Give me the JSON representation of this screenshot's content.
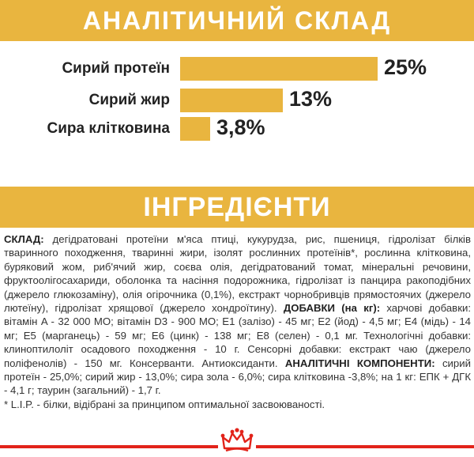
{
  "analytic": {
    "title": "АНАЛІТИЧНИЙ СКЛАД",
    "rows": [
      {
        "label": "Сирий протеїн",
        "value": "25%",
        "fraction": 1.0
      },
      {
        "label": "Сирий жир",
        "value": "13%",
        "fraction": 0.52
      },
      {
        "label": "Сира клітковина",
        "value": "3,8%",
        "fraction": 0.152
      }
    ]
  },
  "ingredients": {
    "title": "ІНГРЕДІЄНТИ",
    "sklad_label": "СКЛАД:",
    "sklad_text": " дегідратовані протеїни м'яса птиці, кукурудза, рис, пшениця, гідролізат білків тваринного походження, тваринні жири, ізолят рослинних протеїнів*, рослинна клітковина, буряковий жом, риб'ячий жир, соєва олія, дегідратований томат, мінеральні речовини, фруктоолігосахариди, оболонка та насіння подорожника, гідролізат із панцира ракоподібних (джерело глюкозаміну), олія огірочника (0,1%), екстракт чорнобривців прямостоячих (джерело лютеїну), гідролізат хрящової (джерело хондроїтину). ",
    "dobavky_label": "ДОБАВКИ (на кг):",
    "dobavky_text": " харчові добавки: вітамін A - 32 000 MO; вітамін D3 - 900 MO; E1 (залізо) - 45 мг; E2 (йод) - 4,5 мг; E4 (мідь) - 14 мг; E5 (марганець) - 59 мг; E6 (цинк) - 138 мг; E8 (селен) - 0,1 мг. Технологічні добавки: клиноптилоліт осадового походження - 10 г. Сенсорні добавки: екстракт чаю (джерело поліфенолів) - 150 мг. Консерванти. Антиоксиданти. ",
    "components_label": "АНАЛІТИЧНІ КОМПОНЕНТИ:",
    "components_text": " сирий протеїн - 25,0%; сирий жир - 13,0%; сира зола - 6,0%; сира клітковина -3,8%; на 1 кг: ЕПК + ДГК - 4,1 г; таурин (загальний) - 1,7 г.",
    "footnote": "* L.I.P. - білки, відібрані за принципом оптимальної засвоюваності."
  },
  "colors": {
    "accent": "#e9b53f",
    "footer_red": "#e2231a"
  },
  "logo_icon": "crown-icon"
}
